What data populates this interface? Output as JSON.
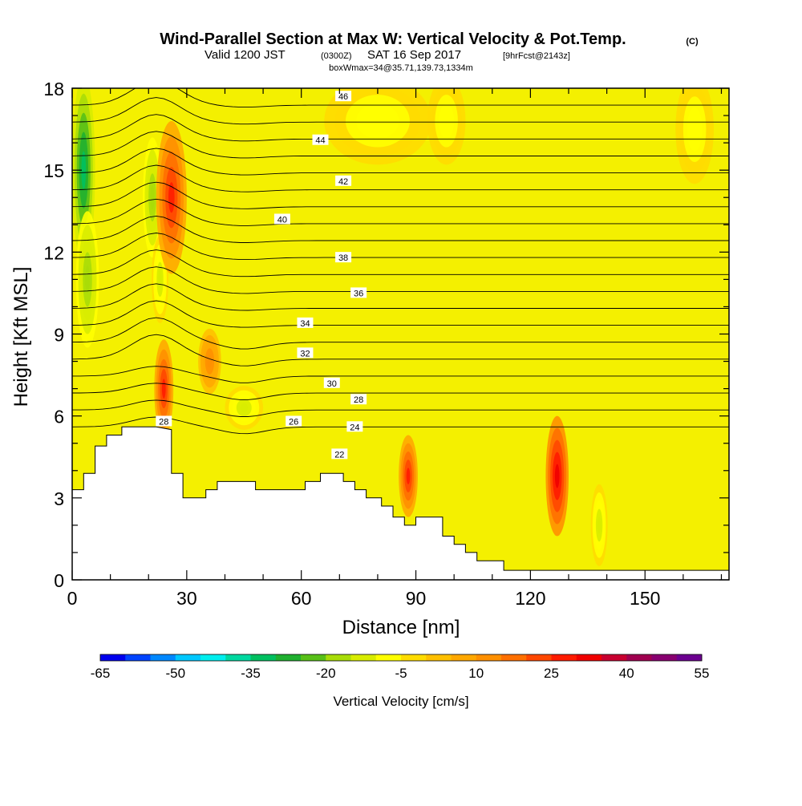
{
  "chart_data": {
    "type": "heatmap",
    "title": "Wind-Parallel Section at Max W: Vertical Velocity & Pot.Temp.",
    "title_mark": "(C)",
    "subtitle_parts": [
      "Valid 1200 JST",
      "(0300Z)",
      "SAT 16 Sep 2017",
      "[9hrFcst@2143z]"
    ],
    "subtitle2": "boxWmax=34@35.71,139.73,1334m",
    "xlabel": "Distance [nm]",
    "ylabel": "Height [Kft MSL]",
    "xlim": [
      0,
      172
    ],
    "ylim": [
      0,
      18
    ],
    "xticks": [
      0,
      30,
      60,
      90,
      120,
      150
    ],
    "yticks": [
      0,
      3,
      6,
      9,
      12,
      15,
      18
    ],
    "grid": false,
    "colorbar": {
      "label": "Vertical Velocity [cm/s]",
      "tick_values": [
        -65,
        -50,
        -35,
        -20,
        -5,
        10,
        25,
        40,
        55
      ],
      "colors": [
        "#0000ee",
        "#0044ff",
        "#0088ff",
        "#00c8ff",
        "#00eeee",
        "#00d8a0",
        "#00c060",
        "#20b030",
        "#58c018",
        "#a8dc08",
        "#d8ec00",
        "#ffff00",
        "#ffdc00",
        "#ffc000",
        "#ffa800",
        "#ff9000",
        "#ff7000",
        "#ff4800",
        "#ff1c00",
        "#f00000",
        "#c80030",
        "#a00050",
        "#880070",
        "#6c0090"
      ]
    },
    "terrain_kft": [
      [
        0,
        3.3
      ],
      [
        3,
        3.3
      ],
      [
        3,
        3.9
      ],
      [
        6,
        3.9
      ],
      [
        6,
        4.9
      ],
      [
        9,
        4.9
      ],
      [
        9,
        5.3
      ],
      [
        13,
        5.3
      ],
      [
        13,
        5.6
      ],
      [
        22,
        5.6
      ],
      [
        26,
        5.5
      ],
      [
        26,
        3.9
      ],
      [
        29,
        3.9
      ],
      [
        29,
        3.0
      ],
      [
        35,
        3.0
      ],
      [
        35,
        3.3
      ],
      [
        38,
        3.3
      ],
      [
        38,
        3.6
      ],
      [
        48,
        3.6
      ],
      [
        48,
        3.3
      ],
      [
        61,
        3.3
      ],
      [
        61,
        3.6
      ],
      [
        65,
        3.6
      ],
      [
        65,
        3.9
      ],
      [
        71,
        3.9
      ],
      [
        71,
        3.6
      ],
      [
        74,
        3.6
      ],
      [
        74,
        3.3
      ],
      [
        77,
        3.3
      ],
      [
        77,
        3.0
      ],
      [
        81,
        3.0
      ],
      [
        81,
        2.7
      ],
      [
        84,
        2.7
      ],
      [
        84,
        2.3
      ],
      [
        87,
        2.3
      ],
      [
        87,
        2.0
      ],
      [
        90,
        2.0
      ],
      [
        90,
        2.3
      ],
      [
        97,
        2.3
      ],
      [
        97,
        1.6
      ],
      [
        100,
        1.6
      ],
      [
        100,
        1.3
      ],
      [
        103,
        1.3
      ],
      [
        103,
        1.0
      ],
      [
        106,
        1.0
      ],
      [
        106,
        0.7
      ],
      [
        113,
        0.7
      ],
      [
        113,
        0.35
      ],
      [
        172,
        0.35
      ]
    ],
    "velocity_features": [
      {
        "x": 3,
        "y": 15.0,
        "rx": 3,
        "ry": 3.5,
        "value": -35
      },
      {
        "x": 4,
        "y": 11.0,
        "rx": 3,
        "ry": 2.5,
        "value": -20
      },
      {
        "x": 21,
        "y": 14.0,
        "rx": 2.5,
        "ry": 2.2,
        "value": -20
      },
      {
        "x": 23,
        "y": 11.0,
        "rx": 2.2,
        "ry": 1.6,
        "value": -12
      },
      {
        "x": 26,
        "y": 14.0,
        "rx": 4,
        "ry": 2.8,
        "value": 25
      },
      {
        "x": 24,
        "y": 7.0,
        "rx": 2.5,
        "ry": 1.8,
        "value": 25
      },
      {
        "x": 45,
        "y": 6.3,
        "rx": 5,
        "ry": 0.8,
        "value": -12
      },
      {
        "x": 36,
        "y": 8.0,
        "rx": 3,
        "ry": 1.2,
        "value": 12
      },
      {
        "x": 88,
        "y": 3.8,
        "rx": 2.5,
        "ry": 1.5,
        "value": 25
      },
      {
        "x": 80,
        "y": 16.8,
        "rx": 14,
        "ry": 1.6,
        "value": -8
      },
      {
        "x": 98,
        "y": 16.8,
        "rx": 5,
        "ry": 1.6,
        "value": -8
      },
      {
        "x": 127,
        "y": 3.8,
        "rx": 3,
        "ry": 2.2,
        "value": 32
      },
      {
        "x": 138,
        "y": 2.0,
        "rx": 2.2,
        "ry": 1.5,
        "value": -12
      },
      {
        "x": 163,
        "y": 16.5,
        "rx": 5,
        "ry": 2,
        "value": -8
      }
    ],
    "theta_contours": [
      {
        "label": "22",
        "label_x": 70,
        "label_y": 4.6
      },
      {
        "label": "24",
        "label_x": 74,
        "label_y": 5.6
      },
      {
        "label": "26",
        "label_x": 58,
        "label_y": 5.8
      },
      {
        "label": "28",
        "label_x": 75,
        "label_y": 6.6
      },
      {
        "label": "28",
        "label_x": 24,
        "label_y": 5.8
      },
      {
        "label": "30",
        "label_x": 68,
        "label_y": 7.2
      },
      {
        "label": "32",
        "label_x": 61,
        "label_y": 8.3
      },
      {
        "label": "34",
        "label_x": 61,
        "label_y": 9.4
      },
      {
        "label": "36",
        "label_x": 75,
        "label_y": 10.5
      },
      {
        "label": "38",
        "label_x": 71,
        "label_y": 11.8
      },
      {
        "label": "40",
        "label_x": 55,
        "label_y": 13.2
      },
      {
        "label": "42",
        "label_x": 71,
        "label_y": 14.6
      },
      {
        "label": "44",
        "label_x": 65,
        "label_y": 16.1
      },
      {
        "label": "46",
        "label_x": 71,
        "label_y": 17.7
      }
    ]
  }
}
